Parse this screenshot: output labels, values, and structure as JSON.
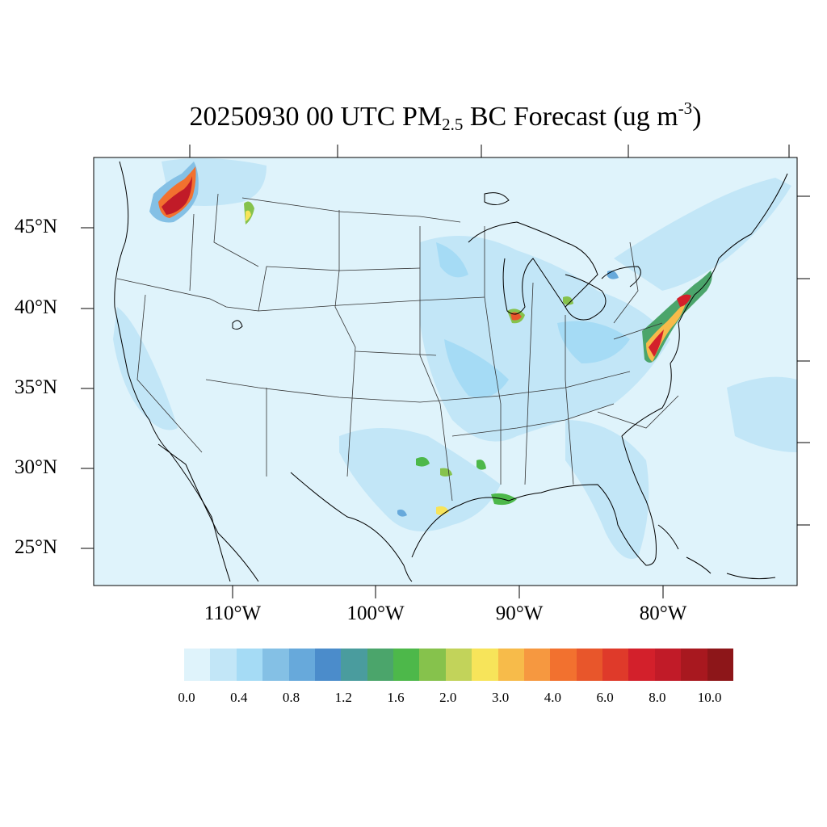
{
  "title": {
    "prefix": "20250930 00 UTC PM",
    "subscript": "2.5",
    "middle": " BC Forecast (ug m",
    "superscript": "-3",
    "suffix": ")"
  },
  "lat_labels": [
    "45°N",
    "40°N",
    "35°N",
    "30°N",
    "25°N"
  ],
  "lon_labels": [
    "110°W",
    "100°W",
    "90°W",
    "80°W"
  ],
  "colorbar": {
    "tick_labels": [
      "0.0",
      "0.4",
      "0.8",
      "1.2",
      "1.6",
      "2.0",
      "3.0",
      "4.0",
      "6.0",
      "8.0",
      "10.0"
    ],
    "colors": [
      "#dff3fb",
      "#c2e6f7",
      "#a5dbf5",
      "#84c0e5",
      "#67a9db",
      "#4b8ccb",
      "#4a9c9e",
      "#4ba56b",
      "#4db84a",
      "#86c24c",
      "#c2d35a",
      "#f7e45a",
      "#f7bb4a",
      "#f69840",
      "#f2712f",
      "#e8562b",
      "#df3a2a",
      "#d3202b",
      "#c11b28",
      "#a8181f",
      "#8d1619"
    ]
  },
  "colors": {
    "background": "#dff3fb",
    "border": "#000000"
  }
}
